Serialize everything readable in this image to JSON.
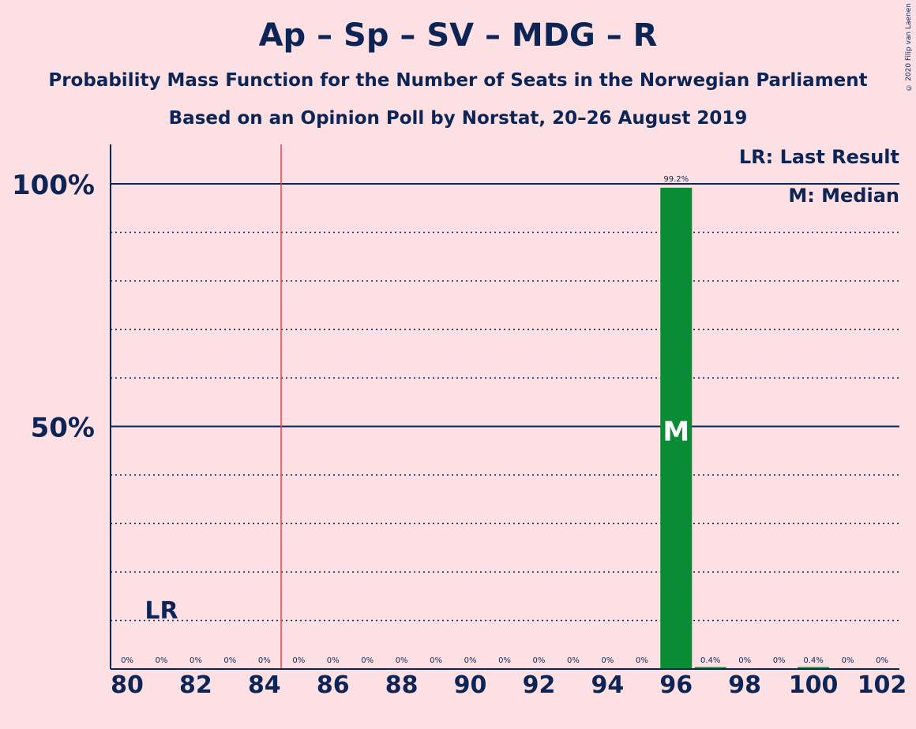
{
  "header": {
    "title": "Ap – Sp – SV – MDG – R",
    "subtitle": "Probability Mass Function for the Number of Seats in the Norwegian Parliament",
    "subtitle2": "Based on an Opinion Poll by Norstat, 20–26 August 2019",
    "copyright": "© 2020 Filip van Laenen"
  },
  "legend": {
    "last_result": "LR: Last Result",
    "median": "M: Median"
  },
  "colors": {
    "background": "#fde0e3",
    "text": "#0d2556",
    "bar": "#0a8c36",
    "last_result_line": "#e8414a"
  },
  "chart_data": {
    "type": "bar",
    "x": [
      80,
      81,
      82,
      83,
      84,
      85,
      86,
      87,
      88,
      89,
      90,
      91,
      92,
      93,
      94,
      95,
      96,
      97,
      98,
      99,
      100,
      101,
      102
    ],
    "values": [
      0,
      0,
      0,
      0,
      0,
      0,
      0,
      0,
      0,
      0,
      0,
      0,
      0,
      0,
      0,
      0,
      99.2,
      0.4,
      0,
      0,
      0.4,
      0,
      0
    ],
    "value_labels": [
      "0%",
      "0%",
      "0%",
      "0%",
      "0%",
      "0%",
      "0%",
      "0%",
      "0%",
      "0%",
      "0%",
      "0%",
      "0%",
      "0%",
      "0%",
      "0%",
      "99.2%",
      "0.4%",
      "0%",
      "0%",
      "0.4%",
      "0%",
      "0%"
    ],
    "x_tick_labels": [
      "80",
      "82",
      "84",
      "86",
      "88",
      "90",
      "92",
      "94",
      "96",
      "98",
      "100",
      "102"
    ],
    "y_tick_labels": [
      "50%",
      "100%"
    ],
    "ylim": [
      0,
      100
    ],
    "last_result": 81,
    "last_result_label": "LR",
    "median": 96,
    "median_label": "M",
    "grid": true
  }
}
